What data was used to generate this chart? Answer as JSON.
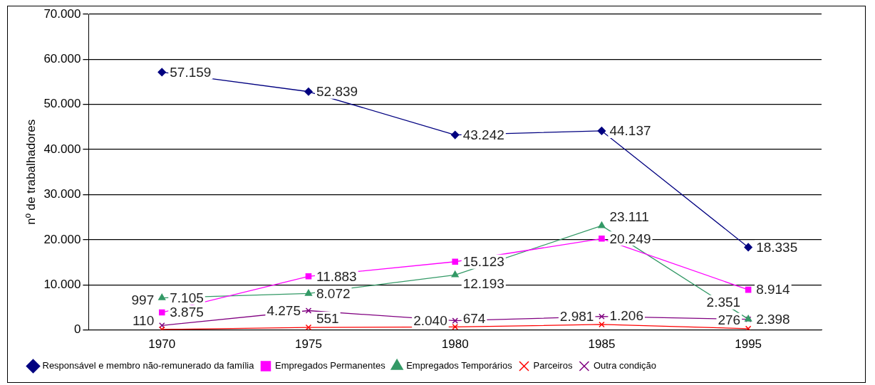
{
  "chart_data": {
    "type": "line",
    "ylabel": "nº de trabalhadores",
    "categories": [
      "1970",
      "1975",
      "1980",
      "1985",
      "1995"
    ],
    "ylim": [
      0,
      70000
    ],
    "yticks": [
      {
        "value": 0,
        "label": "0"
      },
      {
        "value": 10000,
        "label": "10.000"
      },
      {
        "value": 20000,
        "label": "20.000"
      },
      {
        "value": 30000,
        "label": "30.000"
      },
      {
        "value": 40000,
        "label": "40.000"
      },
      {
        "value": 50000,
        "label": "50.000"
      },
      {
        "value": 60000,
        "label": "60.000"
      },
      {
        "value": 70000,
        "label": "70.000"
      }
    ],
    "grid": "y",
    "legend": "bottom",
    "line_style": "solid",
    "series": [
      {
        "name": "Responsável e membro não-remunerado da família",
        "color": "#000080",
        "marker": "diamond",
        "values": [
          57159,
          52839,
          43242,
          44137,
          18335
        ],
        "value_labels": [
          "57.159",
          "52.839",
          "43.242",
          "44.137",
          "18.335"
        ]
      },
      {
        "name": "Empregados Permanentes",
        "color": "#ff00ff",
        "marker": "square",
        "values": [
          3875,
          11883,
          15123,
          20249,
          8914
        ],
        "value_labels": [
          "3.875",
          "11.883",
          "15.123",
          "20.249",
          "8.914"
        ]
      },
      {
        "name": "Empregados Temporários",
        "color": "#339966",
        "marker": "triangle",
        "values": [
          7105,
          8072,
          12193,
          23111,
          2398
        ],
        "value_labels": [
          "7.105",
          "8.072",
          "12.193",
          "23.111",
          "2.398"
        ]
      },
      {
        "name": "Parceiros",
        "color": "#ff0000",
        "marker": "cross",
        "values": [
          110,
          551,
          674,
          1206,
          276
        ],
        "value_labels": [
          "110",
          "551",
          "674",
          "1.206",
          "276"
        ]
      },
      {
        "name": "Outra condição",
        "color": "#800080",
        "marker": "cross",
        "values": [
          997,
          4275,
          2040,
          2981,
          2351
        ],
        "value_labels": [
          "997",
          "4.275",
          "2.040",
          "2.981",
          "2.351"
        ]
      }
    ]
  }
}
